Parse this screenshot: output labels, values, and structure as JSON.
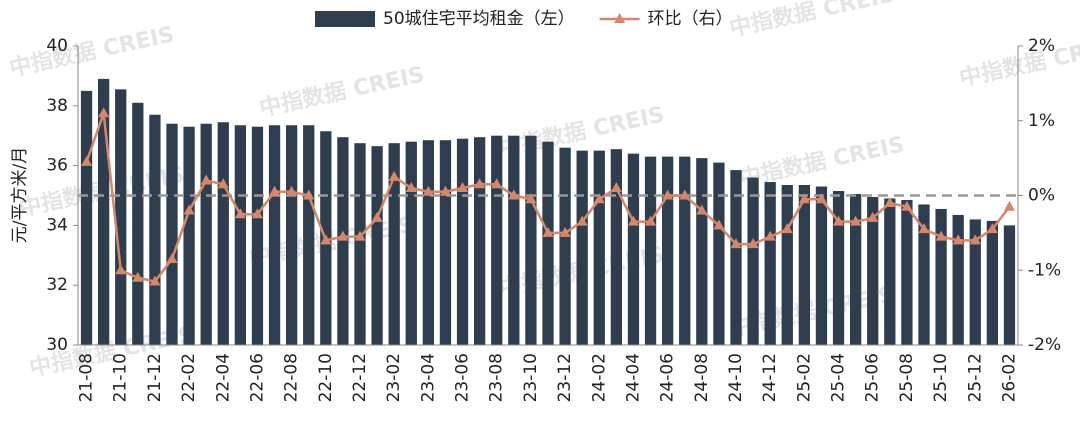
{
  "chart_data": {
    "type": "bar_line",
    "watermark": "中指数据 CREIS",
    "y_label": "元/平方米/月",
    "categories": [
      "21-08",
      null,
      "21-10",
      null,
      "21-12",
      null,
      "22-02",
      null,
      "22-04",
      null,
      "22-06",
      null,
      "22-08",
      null,
      "22-10",
      null,
      "22-12",
      null,
      "23-02",
      null,
      "23-04",
      null,
      "23-06",
      null,
      "23-08",
      null,
      "23-10",
      null,
      "23-12",
      null,
      "24-02",
      null,
      "24-04",
      null,
      "24-06",
      null,
      "24-08",
      null,
      "24-10",
      null,
      "24-12",
      null,
      "25-02",
      null,
      "25-04",
      null,
      "25-06",
      null,
      "25-08",
      null,
      "25-10",
      null,
      "25-12",
      null,
      "26-02"
    ],
    "series": [
      {
        "name": "50城住宅平均租金（左）",
        "color": "#2e3e4e",
        "type": "bar",
        "values": [
          38.5,
          38.9,
          38.55,
          38.1,
          37.7,
          37.4,
          37.3,
          37.4,
          37.45,
          37.35,
          37.3,
          37.35,
          37.35,
          37.35,
          37.15,
          36.95,
          36.75,
          36.65,
          36.75,
          36.8,
          36.85,
          36.85,
          36.9,
          36.95,
          37.0,
          37.0,
          37.0,
          36.8,
          36.6,
          36.5,
          36.5,
          36.55,
          36.4,
          36.3,
          36.3,
          36.3,
          36.25,
          36.1,
          35.85,
          35.6,
          35.45,
          35.35,
          35.35,
          35.3,
          35.15,
          35.05,
          34.95,
          34.9,
          34.85,
          34.7,
          34.55,
          34.35,
          34.2,
          34.15,
          34.0
        ]
      },
      {
        "name": "环比（右）",
        "color": "#d4876a",
        "type": "line",
        "axis": "y2",
        "values": [
          0.45,
          1.1,
          -1.0,
          -1.1,
          -1.15,
          -0.85,
          -0.2,
          0.2,
          0.15,
          -0.25,
          -0.25,
          0.05,
          0.05,
          0.0,
          -0.6,
          -0.55,
          -0.55,
          -0.3,
          0.25,
          0.1,
          0.05,
          0.05,
          0.1,
          0.15,
          0.15,
          0.0,
          -0.05,
          -0.5,
          -0.5,
          -0.35,
          -0.05,
          0.1,
          -0.35,
          -0.35,
          0.0,
          0.0,
          -0.2,
          -0.4,
          -0.65,
          -0.65,
          -0.55,
          -0.45,
          -0.05,
          -0.05,
          -0.35,
          -0.35,
          -0.3,
          -0.1,
          -0.15,
          -0.45,
          -0.55,
          -0.6,
          -0.6,
          -0.45,
          -0.15
        ]
      }
    ],
    "ylim": [
      30,
      40
    ],
    "yticks": [
      30,
      32,
      34,
      36,
      38,
      40
    ],
    "y2lim": [
      -2,
      2
    ],
    "y2ticks": [
      {
        "value": -2,
        "label": "-2%"
      },
      {
        "value": -1,
        "label": "-1%"
      },
      {
        "value": 0,
        "label": "0%"
      },
      {
        "value": 1,
        "label": "1%"
      },
      {
        "value": 2,
        "label": "2%"
      }
    ],
    "y2_reference_line": 0,
    "legend": "top"
  }
}
